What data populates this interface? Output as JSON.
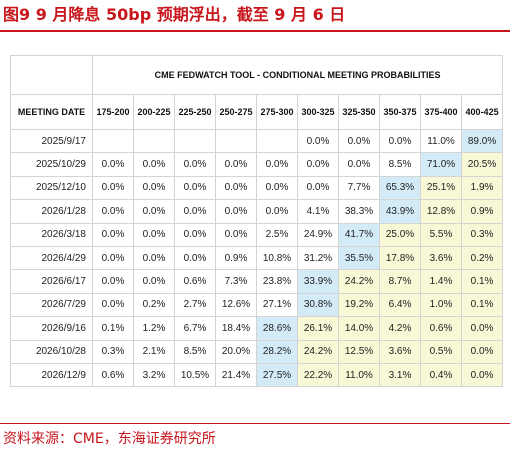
{
  "figure_title": "图9  9 月降息 50bp 预期浮出，截至 9 月 6 日",
  "table": {
    "title": "CME FEDWATCH TOOL - CONDITIONAL MEETING PROBABILITIES",
    "date_header": "MEETING DATE",
    "columns": [
      "175-200",
      "200-225",
      "225-250",
      "250-275",
      "275-300",
      "300-325",
      "325-350",
      "350-375",
      "375-400",
      "400-425"
    ],
    "rows": [
      {
        "date": "2025/9/17",
        "values": [
          "",
          "",
          "",
          "",
          "",
          "0.0%",
          "0.0%",
          "0.0%",
          "11.0%",
          "89.0%"
        ]
      },
      {
        "date": "2025/10/29",
        "values": [
          "0.0%",
          "0.0%",
          "0.0%",
          "0.0%",
          "0.0%",
          "0.0%",
          "0.0%",
          "8.5%",
          "71.0%",
          "20.5%"
        ]
      },
      {
        "date": "2025/12/10",
        "values": [
          "0.0%",
          "0.0%",
          "0.0%",
          "0.0%",
          "0.0%",
          "0.0%",
          "7.7%",
          "65.3%",
          "25.1%",
          "1.9%"
        ]
      },
      {
        "date": "2026/1/28",
        "values": [
          "0.0%",
          "0.0%",
          "0.0%",
          "0.0%",
          "0.0%",
          "4.1%",
          "38.3%",
          "43.9%",
          "12.8%",
          "0.9%"
        ]
      },
      {
        "date": "2026/3/18",
        "values": [
          "0.0%",
          "0.0%",
          "0.0%",
          "0.0%",
          "2.5%",
          "24.9%",
          "41.7%",
          "25.0%",
          "5.5%",
          "0.3%"
        ]
      },
      {
        "date": "2026/4/29",
        "values": [
          "0.0%",
          "0.0%",
          "0.0%",
          "0.9%",
          "10.8%",
          "31.2%",
          "35.5%",
          "17.8%",
          "3.6%",
          "0.2%"
        ]
      },
      {
        "date": "2026/6/17",
        "values": [
          "0.0%",
          "0.0%",
          "0.6%",
          "7.3%",
          "23.8%",
          "33.9%",
          "24.2%",
          "8.7%",
          "1.4%",
          "0.1%"
        ]
      },
      {
        "date": "2026/7/29",
        "values": [
          "0.0%",
          "0.2%",
          "2.7%",
          "12.6%",
          "27.1%",
          "30.8%",
          "19.2%",
          "6.4%",
          "1.0%",
          "0.1%"
        ]
      },
      {
        "date": "2026/9/16",
        "values": [
          "0.1%",
          "1.2%",
          "6.7%",
          "18.4%",
          "28.6%",
          "26.1%",
          "14.0%",
          "4.2%",
          "0.6%",
          "0.0%"
        ]
      },
      {
        "date": "2026/10/28",
        "values": [
          "0.3%",
          "2.1%",
          "8.5%",
          "20.0%",
          "28.2%",
          "24.2%",
          "12.5%",
          "3.6%",
          "0.5%",
          "0.0%"
        ]
      },
      {
        "date": "2026/12/9",
        "values": [
          "0.6%",
          "3.2%",
          "10.5%",
          "21.4%",
          "27.5%",
          "22.2%",
          "11.0%",
          "3.1%",
          "0.4%",
          "0.0%"
        ]
      }
    ],
    "highlight_blue_col_index": [
      9,
      8,
      7,
      7,
      6,
      6,
      5,
      5,
      4,
      4,
      4
    ],
    "colors": {
      "blue": "#d3ebf7",
      "yellow": "#f8f7d6",
      "accent": "#c8161d"
    }
  },
  "source_note": "资料来源：CME，东海证券研究所"
}
